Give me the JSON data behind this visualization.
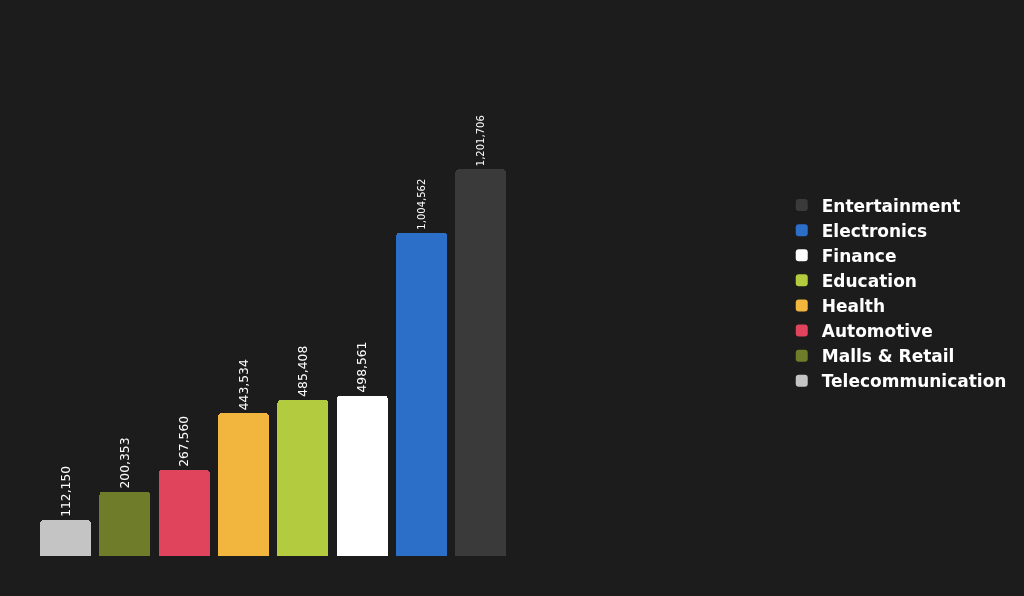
{
  "chart_data": {
    "type": "bar",
    "stacked": true,
    "categories": [
      null,
      null,
      null,
      null,
      null,
      null,
      null,
      null
    ],
    "series": [
      {
        "name": "Entertainment",
        "color": "#3a3a3a",
        "values": [
          null,
          null,
          null,
          null,
          null,
          null,
          null,
          1201706
        ],
        "value_labels": [
          null,
          null,
          null,
          null,
          null,
          null,
          null,
          "1,201,706"
        ]
      },
      {
        "name": "Electronics",
        "color": "#2c6fc9",
        "values": [
          null,
          null,
          null,
          null,
          null,
          null,
          1004562,
          null
        ],
        "value_labels": [
          null,
          null,
          null,
          null,
          null,
          null,
          "1,004,562",
          null
        ]
      },
      {
        "name": "Finance",
        "color": "#ffffff",
        "values": [
          null,
          null,
          null,
          null,
          null,
          498561,
          null,
          null
        ],
        "value_labels": [
          null,
          null,
          null,
          null,
          null,
          "498,561",
          null,
          null
        ]
      },
      {
        "name": "Education",
        "color": "#b3cb3e",
        "values": [
          null,
          null,
          null,
          null,
          485408,
          null,
          null,
          null
        ],
        "value_labels": [
          null,
          null,
          null,
          null,
          "485,408",
          null,
          null,
          null
        ]
      },
      {
        "name": "Health",
        "color": "#f2b53d",
        "values": [
          null,
          null,
          null,
          443534,
          null,
          null,
          null,
          null
        ],
        "value_labels": [
          null,
          null,
          null,
          "443,534",
          null,
          null,
          null,
          null
        ]
      },
      {
        "name": "Automotive",
        "color": "#e0435c",
        "values": [
          null,
          null,
          267560,
          null,
          null,
          null,
          null,
          null
        ],
        "value_labels": [
          null,
          null,
          "267,560",
          null,
          null,
          null,
          null,
          null
        ]
      },
      {
        "name": "Malls & Retail",
        "color": "#6f7c2a",
        "values": [
          null,
          200353,
          null,
          null,
          null,
          null,
          null,
          null
        ],
        "value_labels": [
          null,
          "200,353",
          null,
          null,
          null,
          null,
          null,
          null
        ]
      },
      {
        "name": "Telecommunication",
        "color": "#c4c4c4",
        "values": [
          112150,
          null,
          null,
          null,
          null,
          null,
          null,
          null
        ],
        "value_labels": [
          "112,150",
          null,
          null,
          null,
          null,
          null,
          null,
          null
        ]
      }
    ],
    "legend": "right",
    "grid": false,
    "tick_labels": false
  }
}
